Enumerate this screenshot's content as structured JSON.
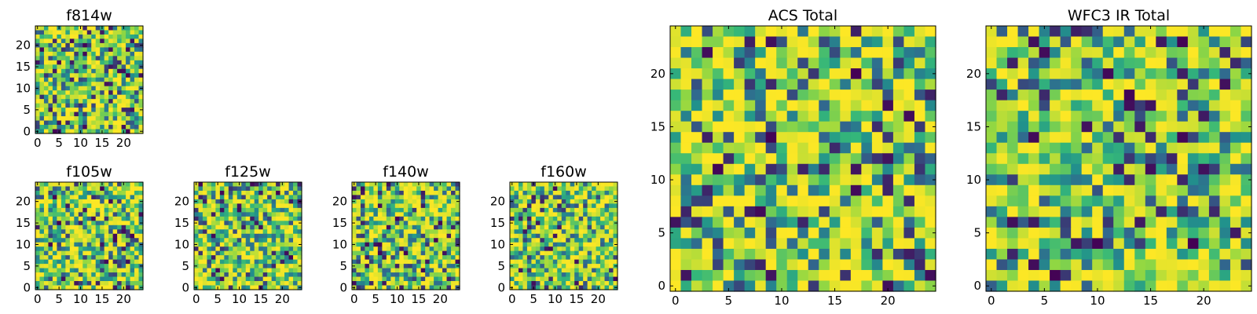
{
  "colormap": [
    "#440154",
    "#31688e",
    "#21918c",
    "#35b779",
    "#90d743",
    "#fde725"
  ],
  "chart_data": [
    {
      "id": "f814w",
      "type": "heatmap",
      "title": "f814w",
      "grid_size": 25,
      "xticks": [
        "0",
        "5",
        "10",
        "15",
        "20"
      ],
      "yticks": [
        "0",
        "5",
        "10",
        "15",
        "20"
      ],
      "xlim": [
        -0.5,
        24.5
      ],
      "ylim": [
        -0.5,
        24.5
      ],
      "seed": 11
    },
    {
      "id": "f105w",
      "type": "heatmap",
      "title": "f105w",
      "grid_size": 25,
      "xticks": [
        "0",
        "5",
        "10",
        "15",
        "20"
      ],
      "yticks": [
        "0",
        "5",
        "10",
        "15",
        "20"
      ],
      "xlim": [
        -0.5,
        24.5
      ],
      "ylim": [
        -0.5,
        24.5
      ],
      "seed": 23
    },
    {
      "id": "f125w",
      "type": "heatmap",
      "title": "f125w",
      "grid_size": 25,
      "xticks": [
        "0",
        "5",
        "10",
        "15",
        "20"
      ],
      "yticks": [
        "0",
        "5",
        "10",
        "15",
        "20"
      ],
      "xlim": [
        -0.5,
        24.5
      ],
      "ylim": [
        -0.5,
        24.5
      ],
      "seed": 37
    },
    {
      "id": "f140w",
      "type": "heatmap",
      "title": "f140w",
      "grid_size": 25,
      "xticks": [
        "0",
        "5",
        "10",
        "15",
        "20"
      ],
      "yticks": [
        "0",
        "5",
        "10",
        "15",
        "20"
      ],
      "xlim": [
        -0.5,
        24.5
      ],
      "ylim": [
        -0.5,
        24.5
      ],
      "seed": 41
    },
    {
      "id": "f160w",
      "type": "heatmap",
      "title": "f160w",
      "grid_size": 25,
      "xticks": [
        "0",
        "5",
        "10",
        "15",
        "20"
      ],
      "yticks": [
        "0",
        "5",
        "10",
        "15",
        "20"
      ],
      "xlim": [
        -0.5,
        24.5
      ],
      "ylim": [
        -0.5,
        24.5
      ],
      "seed": 53
    },
    {
      "id": "acs-total",
      "type": "heatmap",
      "title": "ACS Total",
      "grid_size": 25,
      "xticks": [
        "0",
        "5",
        "10",
        "15",
        "20"
      ],
      "yticks": [
        "0",
        "5",
        "10",
        "15",
        "20"
      ],
      "xlim": [
        -0.5,
        24.5
      ],
      "ylim": [
        -0.5,
        24.5
      ],
      "seed": 67
    },
    {
      "id": "wfc3-ir-total",
      "type": "heatmap",
      "title": "WFC3 IR Total",
      "grid_size": 25,
      "xticks": [
        "0",
        "5",
        "10",
        "15",
        "20"
      ],
      "yticks": [
        "0",
        "5",
        "10",
        "15",
        "20"
      ],
      "xlim": [
        -0.5,
        24.5
      ],
      "ylim": [
        -0.5,
        24.5
      ],
      "seed": 79
    }
  ]
}
